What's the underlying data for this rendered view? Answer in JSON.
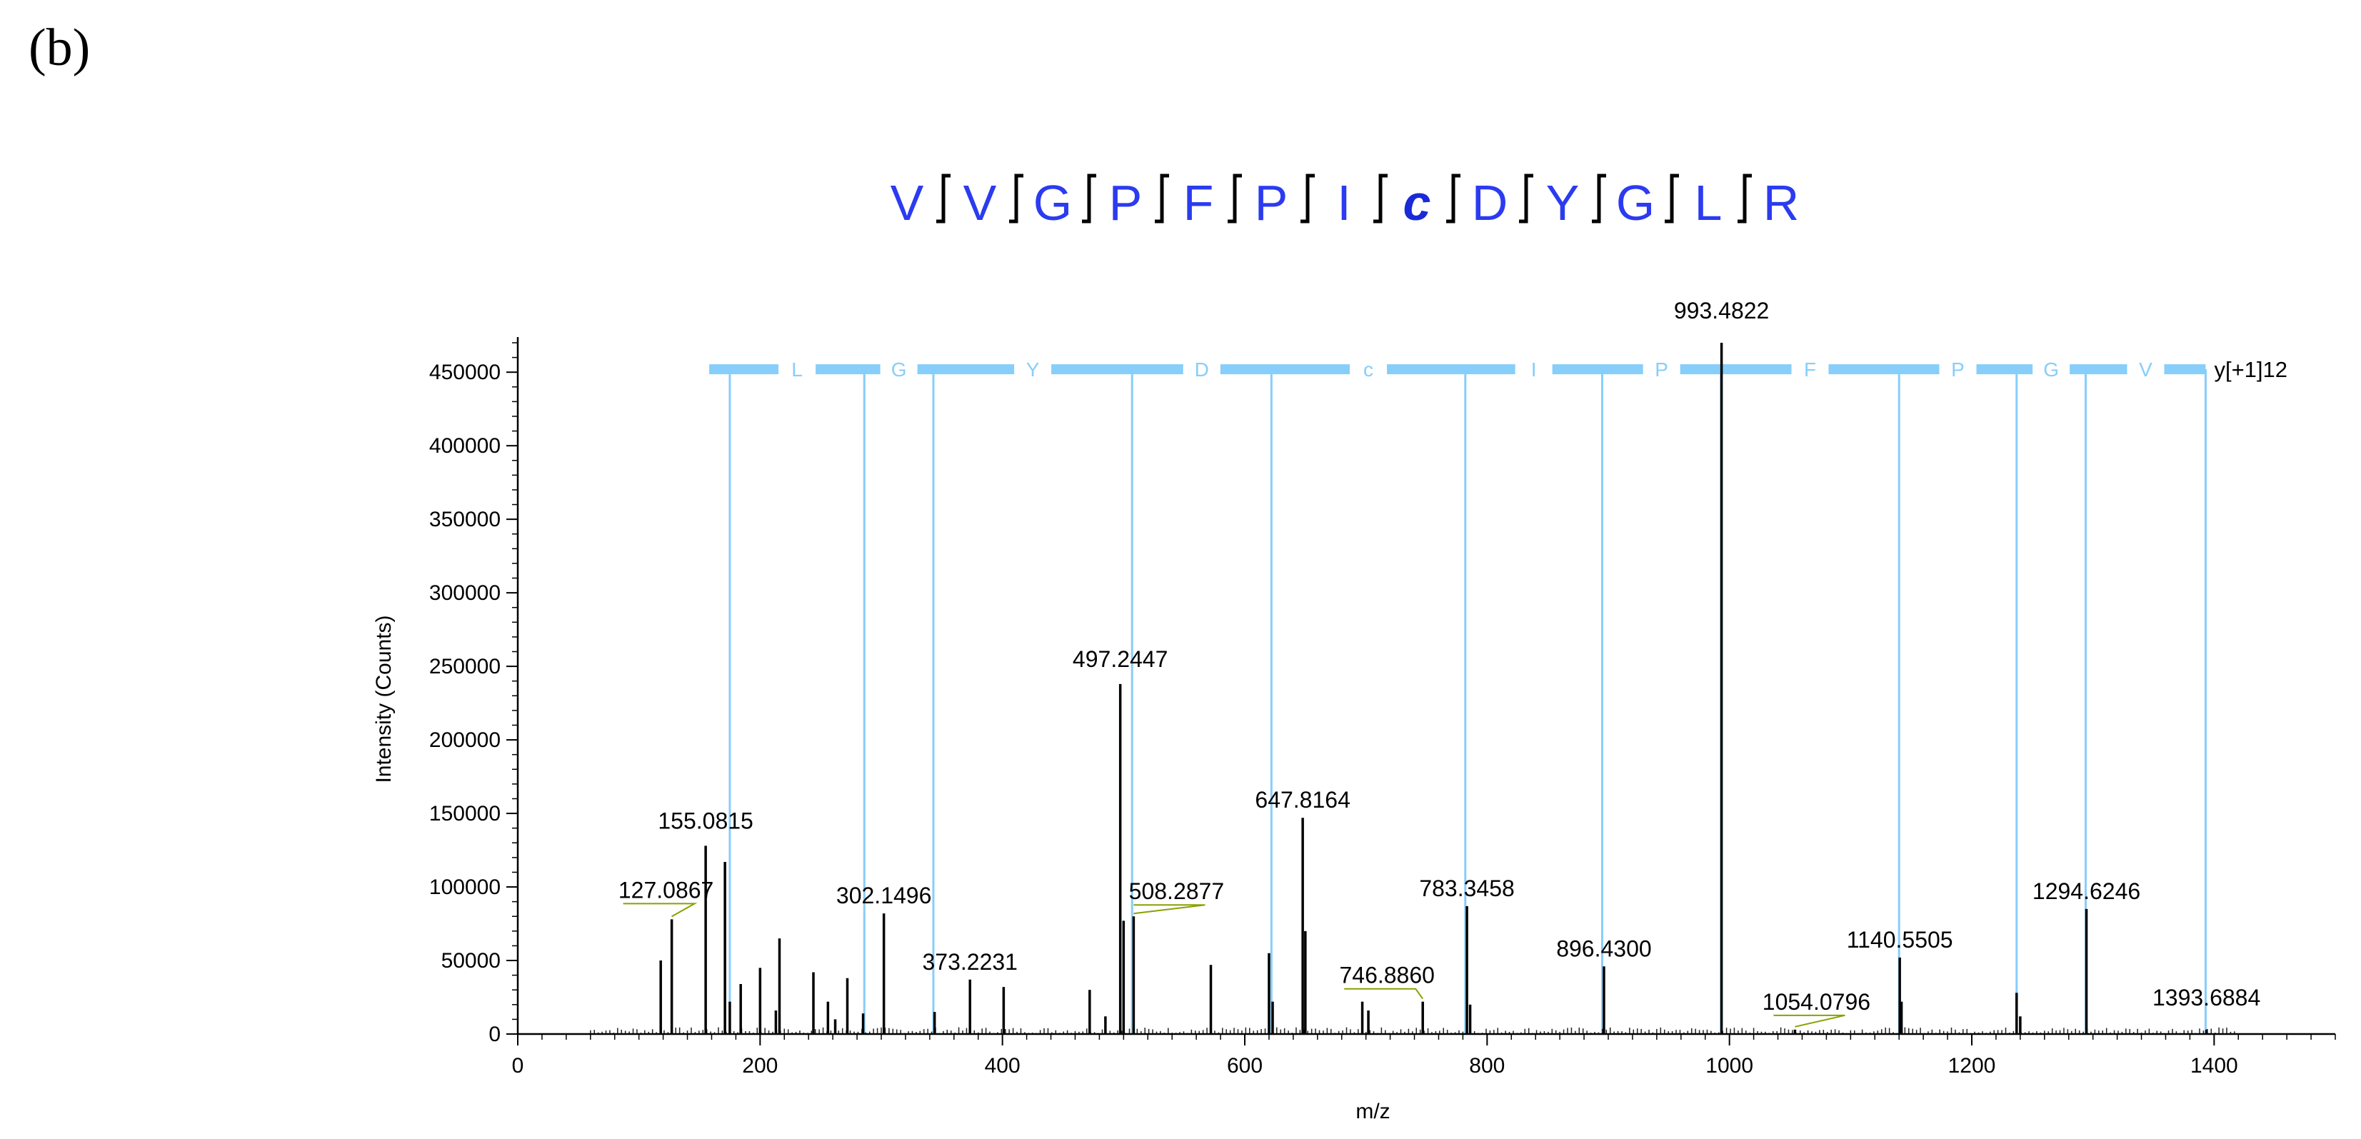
{
  "panel_label": "(b)",
  "sequence": {
    "residues": [
      "V",
      "V",
      "G",
      "P",
      "F",
      "P",
      "I",
      "c",
      "D",
      "Y",
      "G",
      "L",
      "R"
    ],
    "bold_residue": "c",
    "color": "#2b3bf0",
    "bracket_color": "#000000"
  },
  "chart_data": {
    "type": "bar",
    "xlabel": "m/z",
    "ylabel": "Intensity (Counts)",
    "xlim": [
      0,
      1500
    ],
    "ylim": [
      0,
      470000
    ],
    "x_ticks": [
      0,
      200,
      400,
      600,
      800,
      1000,
      1200,
      1400
    ],
    "y_ticks": [
      0,
      50000,
      100000,
      150000,
      200000,
      250000,
      300000,
      350000,
      400000,
      450000
    ],
    "grid": false,
    "peak_color": "#000000",
    "peaks": [
      {
        "mz": 118,
        "intensity": 50000
      },
      {
        "mz": 127.0867,
        "intensity": 78000,
        "label": "127.0867",
        "matched": true
      },
      {
        "mz": 155.0815,
        "intensity": 128000,
        "label": "155.0815"
      },
      {
        "mz": 171,
        "intensity": 117000
      },
      {
        "mz": 175,
        "intensity": 22000
      },
      {
        "mz": 184,
        "intensity": 34000
      },
      {
        "mz": 200,
        "intensity": 45000
      },
      {
        "mz": 213,
        "intensity": 16000
      },
      {
        "mz": 216,
        "intensity": 65000
      },
      {
        "mz": 244,
        "intensity": 42000
      },
      {
        "mz": 256,
        "intensity": 22000
      },
      {
        "mz": 262,
        "intensity": 10000
      },
      {
        "mz": 272,
        "intensity": 38000
      },
      {
        "mz": 285,
        "intensity": 14000
      },
      {
        "mz": 302.1496,
        "intensity": 82000,
        "label": "302.1496"
      },
      {
        "mz": 344,
        "intensity": 15000
      },
      {
        "mz": 373.2231,
        "intensity": 37000,
        "label": "373.2231"
      },
      {
        "mz": 401,
        "intensity": 32000
      },
      {
        "mz": 472,
        "intensity": 30000
      },
      {
        "mz": 485,
        "intensity": 12000
      },
      {
        "mz": 497.2447,
        "intensity": 238000,
        "label": "497.2447"
      },
      {
        "mz": 500,
        "intensity": 77000
      },
      {
        "mz": 508.2877,
        "intensity": 80000,
        "label": "508.2877",
        "matched": true
      },
      {
        "mz": 572,
        "intensity": 47000
      },
      {
        "mz": 620,
        "intensity": 55000
      },
      {
        "mz": 623,
        "intensity": 22000
      },
      {
        "mz": 647.8164,
        "intensity": 147000,
        "label": "647.8164"
      },
      {
        "mz": 650,
        "intensity": 70000
      },
      {
        "mz": 697,
        "intensity": 22000
      },
      {
        "mz": 702,
        "intensity": 16000
      },
      {
        "mz": 746.886,
        "intensity": 22000,
        "label": "746.8860",
        "matched": true
      },
      {
        "mz": 783.3458,
        "intensity": 87000,
        "label": "783.3458"
      },
      {
        "mz": 786,
        "intensity": 20000
      },
      {
        "mz": 896.43,
        "intensity": 46000,
        "label": "896.4300"
      },
      {
        "mz": 993.4822,
        "intensity": 470000,
        "label": "993.4822"
      },
      {
        "mz": 1054.0796,
        "intensity": 3000,
        "label": "1054.0796",
        "matched": true
      },
      {
        "mz": 1140.5505,
        "intensity": 52000,
        "label": "1140.5505"
      },
      {
        "mz": 1142,
        "intensity": 22000
      },
      {
        "mz": 1237,
        "intensity": 28000
      },
      {
        "mz": 1240,
        "intensity": 12000
      },
      {
        "mz": 1294.6246,
        "intensity": 85000,
        "label": "1294.6246"
      },
      {
        "mz": 1393.6884,
        "intensity": 3000,
        "label": "1393.6884"
      }
    ],
    "fragment_ladder": {
      "series_label": "y[+1]12",
      "color": "#87cefa",
      "positions": [
        175,
        286,
        343,
        507,
        622,
        782,
        895,
        993,
        1140,
        1237,
        1294,
        1393
      ],
      "residues": [
        "L",
        "G",
        "Y",
        "D",
        "c",
        "I",
        "P",
        "F",
        "P",
        "G",
        "V"
      ]
    }
  }
}
